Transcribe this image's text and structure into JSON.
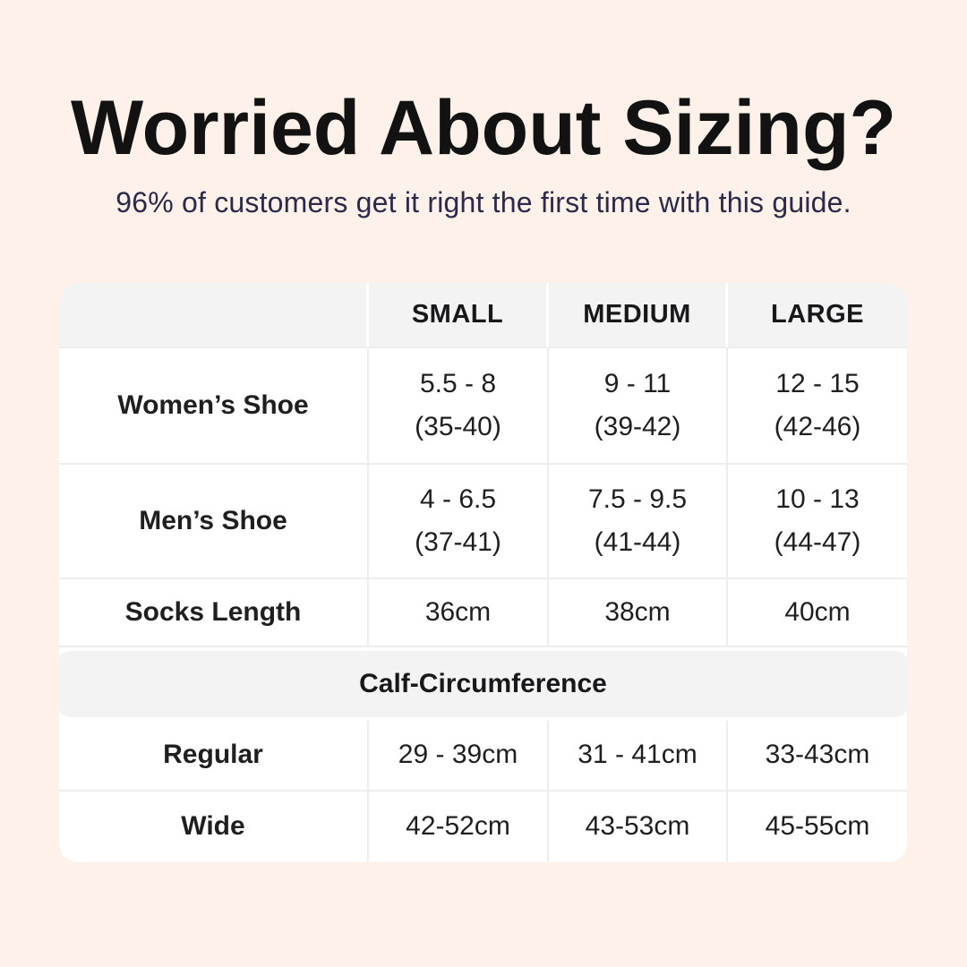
{
  "colors": {
    "background": "#fdf1e9",
    "card": "#ffffff",
    "band": "#f3f3f4",
    "divider": "#ededee",
    "title_text": "#121212",
    "subtitle_text": "#2b2a4a",
    "body_text": "#1f1f21"
  },
  "header": {
    "title": "Worried About Sizing?",
    "subtitle": "96% of customers get it right the first time with this guide."
  },
  "table": {
    "column_headers": [
      "",
      "SMALL",
      "MEDIUM",
      "LARGE"
    ],
    "rows": [
      {
        "label": "Women’s Shoe",
        "cells": [
          {
            "line1": "5.5 - 8",
            "line2": "(35-40)"
          },
          {
            "line1": "9 - 11",
            "line2": "(39-42)"
          },
          {
            "line1": "12 - 15",
            "line2": "(42-46)"
          }
        ]
      },
      {
        "label": "Men’s Shoe",
        "cells": [
          {
            "line1": "4 - 6.5",
            "line2": "(37-41)"
          },
          {
            "line1": "7.5 - 9.5",
            "line2": "(41-44)"
          },
          {
            "line1": "10 - 13",
            "line2": "(44-47)"
          }
        ]
      },
      {
        "label": "Socks Length",
        "cells": [
          {
            "line1": "36cm"
          },
          {
            "line1": "38cm"
          },
          {
            "line1": "40cm"
          }
        ]
      }
    ],
    "section_header": "Calf-Circumference",
    "calf_rows": [
      {
        "label": "Regular",
        "cells": [
          {
            "line1": "29 - 39cm"
          },
          {
            "line1": "31 - 41cm"
          },
          {
            "line1": "33-43cm"
          }
        ]
      },
      {
        "label": "Wide",
        "cells": [
          {
            "line1": "42-52cm"
          },
          {
            "line1": "43-53cm"
          },
          {
            "line1": "45-55cm"
          }
        ]
      }
    ]
  },
  "chart_data": {
    "type": "table",
    "title": "Worried About Sizing?",
    "subtitle": "96% of customers get it right the first time with this guide.",
    "columns": [
      "",
      "SMALL",
      "MEDIUM",
      "LARGE"
    ],
    "rows": [
      [
        "Women’s Shoe",
        "5.5 - 8 (35-40)",
        "9 - 11 (39-42)",
        "12 - 15 (42-46)"
      ],
      [
        "Men’s Shoe",
        "4 - 6.5 (37-41)",
        "7.5 - 9.5 (41-44)",
        "10 - 13 (44-47)"
      ],
      [
        "Socks Length",
        "36cm",
        "38cm",
        "40cm"
      ],
      [
        "Calf-Circumference",
        "",
        "",
        ""
      ],
      [
        "Regular",
        "29 - 39cm",
        "31 - 41cm",
        "33-43cm"
      ],
      [
        "Wide",
        "42-52cm",
        "43-53cm",
        "45-55cm"
      ]
    ]
  }
}
